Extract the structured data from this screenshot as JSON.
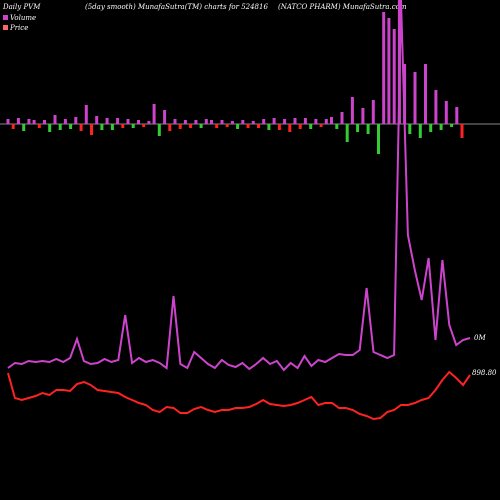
{
  "header": {
    "left": "Daily PVM",
    "center_left": "(5day smooth) MunafaSutra(TM) charts for 524816",
    "center_right": "(NATCO PHARM) MunafaSutra.com"
  },
  "legend": {
    "items": [
      {
        "label": "Volume",
        "color": "#cc44cc"
      },
      {
        "label": "Price",
        "color": "#ff6666"
      }
    ]
  },
  "labels": {
    "volume_end": "0M",
    "price_end": "898.80"
  },
  "chart_data": {
    "type": "line",
    "colors": {
      "volume_line": "#cc44cc",
      "price_line": "#ff2222",
      "bar_up": "#cc44cc",
      "bar_down_green": "#33cc33",
      "bar_down_red": "#ff2222",
      "baseline": "#888888"
    },
    "bars": [
      {
        "h": 5,
        "c": "p"
      },
      {
        "h": -5,
        "c": "r"
      },
      {
        "h": 6,
        "c": "p"
      },
      {
        "h": -7,
        "c": "g"
      },
      {
        "h": 5,
        "c": "p"
      },
      {
        "h": 4,
        "c": "p"
      },
      {
        "h": -4,
        "c": "r"
      },
      {
        "h": 4,
        "c": "p"
      },
      {
        "h": -8,
        "c": "g"
      },
      {
        "h": 9,
        "c": "p"
      },
      {
        "h": -6,
        "c": "g"
      },
      {
        "h": 5,
        "c": "p"
      },
      {
        "h": -5,
        "c": "g"
      },
      {
        "h": 7,
        "c": "p"
      },
      {
        "h": -7,
        "c": "r"
      },
      {
        "h": 19,
        "c": "p"
      },
      {
        "h": -11,
        "c": "r"
      },
      {
        "h": 8,
        "c": "p"
      },
      {
        "h": -6,
        "c": "g"
      },
      {
        "h": 6,
        "c": "p"
      },
      {
        "h": -6,
        "c": "g"
      },
      {
        "h": 6,
        "c": "p"
      },
      {
        "h": -4,
        "c": "r"
      },
      {
        "h": 5,
        "c": "p"
      },
      {
        "h": -4,
        "c": "g"
      },
      {
        "h": 4,
        "c": "p"
      },
      {
        "h": -3,
        "c": "r"
      },
      {
        "h": 3,
        "c": "p"
      },
      {
        "h": 20,
        "c": "p"
      },
      {
        "h": -12,
        "c": "g"
      },
      {
        "h": 14,
        "c": "p"
      },
      {
        "h": -7,
        "c": "r"
      },
      {
        "h": 5,
        "c": "p"
      },
      {
        "h": -5,
        "c": "r"
      },
      {
        "h": 4,
        "c": "p"
      },
      {
        "h": -4,
        "c": "r"
      },
      {
        "h": 4,
        "c": "p"
      },
      {
        "h": -4,
        "c": "g"
      },
      {
        "h": 5,
        "c": "p"
      },
      {
        "h": 4,
        "c": "p"
      },
      {
        "h": -4,
        "c": "r"
      },
      {
        "h": 4,
        "c": "p"
      },
      {
        "h": -3,
        "c": "r"
      },
      {
        "h": 3,
        "c": "p"
      },
      {
        "h": -5,
        "c": "g"
      },
      {
        "h": 4,
        "c": "p"
      },
      {
        "h": -4,
        "c": "r"
      },
      {
        "h": 3,
        "c": "p"
      },
      {
        "h": -4,
        "c": "r"
      },
      {
        "h": 5,
        "c": "p"
      },
      {
        "h": -6,
        "c": "g"
      },
      {
        "h": 6,
        "c": "p"
      },
      {
        "h": -6,
        "c": "r"
      },
      {
        "h": 5,
        "c": "p"
      },
      {
        "h": -8,
        "c": "r"
      },
      {
        "h": 6,
        "c": "p"
      },
      {
        "h": -5,
        "c": "r"
      },
      {
        "h": 6,
        "c": "p"
      },
      {
        "h": -5,
        "c": "g"
      },
      {
        "h": 5,
        "c": "p"
      },
      {
        "h": -3,
        "c": "r"
      },
      {
        "h": 5,
        "c": "p"
      },
      {
        "h": 7,
        "c": "p"
      },
      {
        "h": -5,
        "c": "g"
      },
      {
        "h": 12,
        "c": "p"
      },
      {
        "h": -18,
        "c": "g"
      },
      {
        "h": 27,
        "c": "p"
      },
      {
        "h": -8,
        "c": "g"
      },
      {
        "h": 16,
        "c": "p"
      },
      {
        "h": -10,
        "c": "g"
      },
      {
        "h": 24,
        "c": "p"
      },
      {
        "h": -30,
        "c": "g"
      },
      {
        "h": 112,
        "c": "p"
      },
      {
        "h": 106,
        "c": "p"
      },
      {
        "h": 95,
        "c": "p"
      },
      {
        "h": 130,
        "c": "p"
      },
      {
        "h": 60,
        "c": "p"
      },
      {
        "h": -10,
        "c": "g"
      },
      {
        "h": 52,
        "c": "p"
      },
      {
        "h": -14,
        "c": "g"
      },
      {
        "h": 60,
        "c": "p"
      },
      {
        "h": -8,
        "c": "g"
      },
      {
        "h": 34,
        "c": "p"
      },
      {
        "h": -6,
        "c": "g"
      },
      {
        "h": 23,
        "c": "p"
      },
      {
        "h": -3,
        "c": "g"
      },
      {
        "h": 17,
        "c": "p"
      },
      {
        "h": -14,
        "c": "r"
      }
    ],
    "volume": [
      368,
      363,
      364,
      361,
      362,
      361,
      362,
      359,
      362,
      358,
      339,
      361,
      364,
      363,
      359,
      362,
      360,
      315,
      363,
      358,
      362,
      360,
      363,
      368,
      296,
      364,
      368,
      352,
      358,
      364,
      368,
      360,
      365,
      367,
      363,
      369,
      364,
      358,
      364,
      361,
      370,
      363,
      368,
      356,
      366,
      360,
      362,
      358,
      354,
      355,
      355,
      350,
      288,
      352,
      355,
      358,
      355,
      0,
      235,
      270,
      300,
      258,
      340,
      260,
      325,
      345,
      340,
      338
    ],
    "volume_end_value": 0,
    "price": [
      373,
      398,
      400,
      398,
      396,
      393,
      395,
      390,
      390,
      391,
      384,
      382,
      385,
      390,
      391,
      392,
      393,
      397,
      400,
      403,
      405,
      410,
      412,
      407,
      408,
      413,
      413,
      409,
      407,
      410,
      412,
      410,
      410,
      408,
      408,
      407,
      404,
      400,
      404,
      405,
      406,
      405,
      403,
      400,
      397,
      405,
      403,
      403,
      408,
      408,
      410,
      414,
      416,
      419,
      418,
      412,
      410,
      405,
      405,
      403,
      400,
      398,
      390,
      380,
      372,
      378,
      385,
      375
    ],
    "price_end_value": 898.8
  }
}
